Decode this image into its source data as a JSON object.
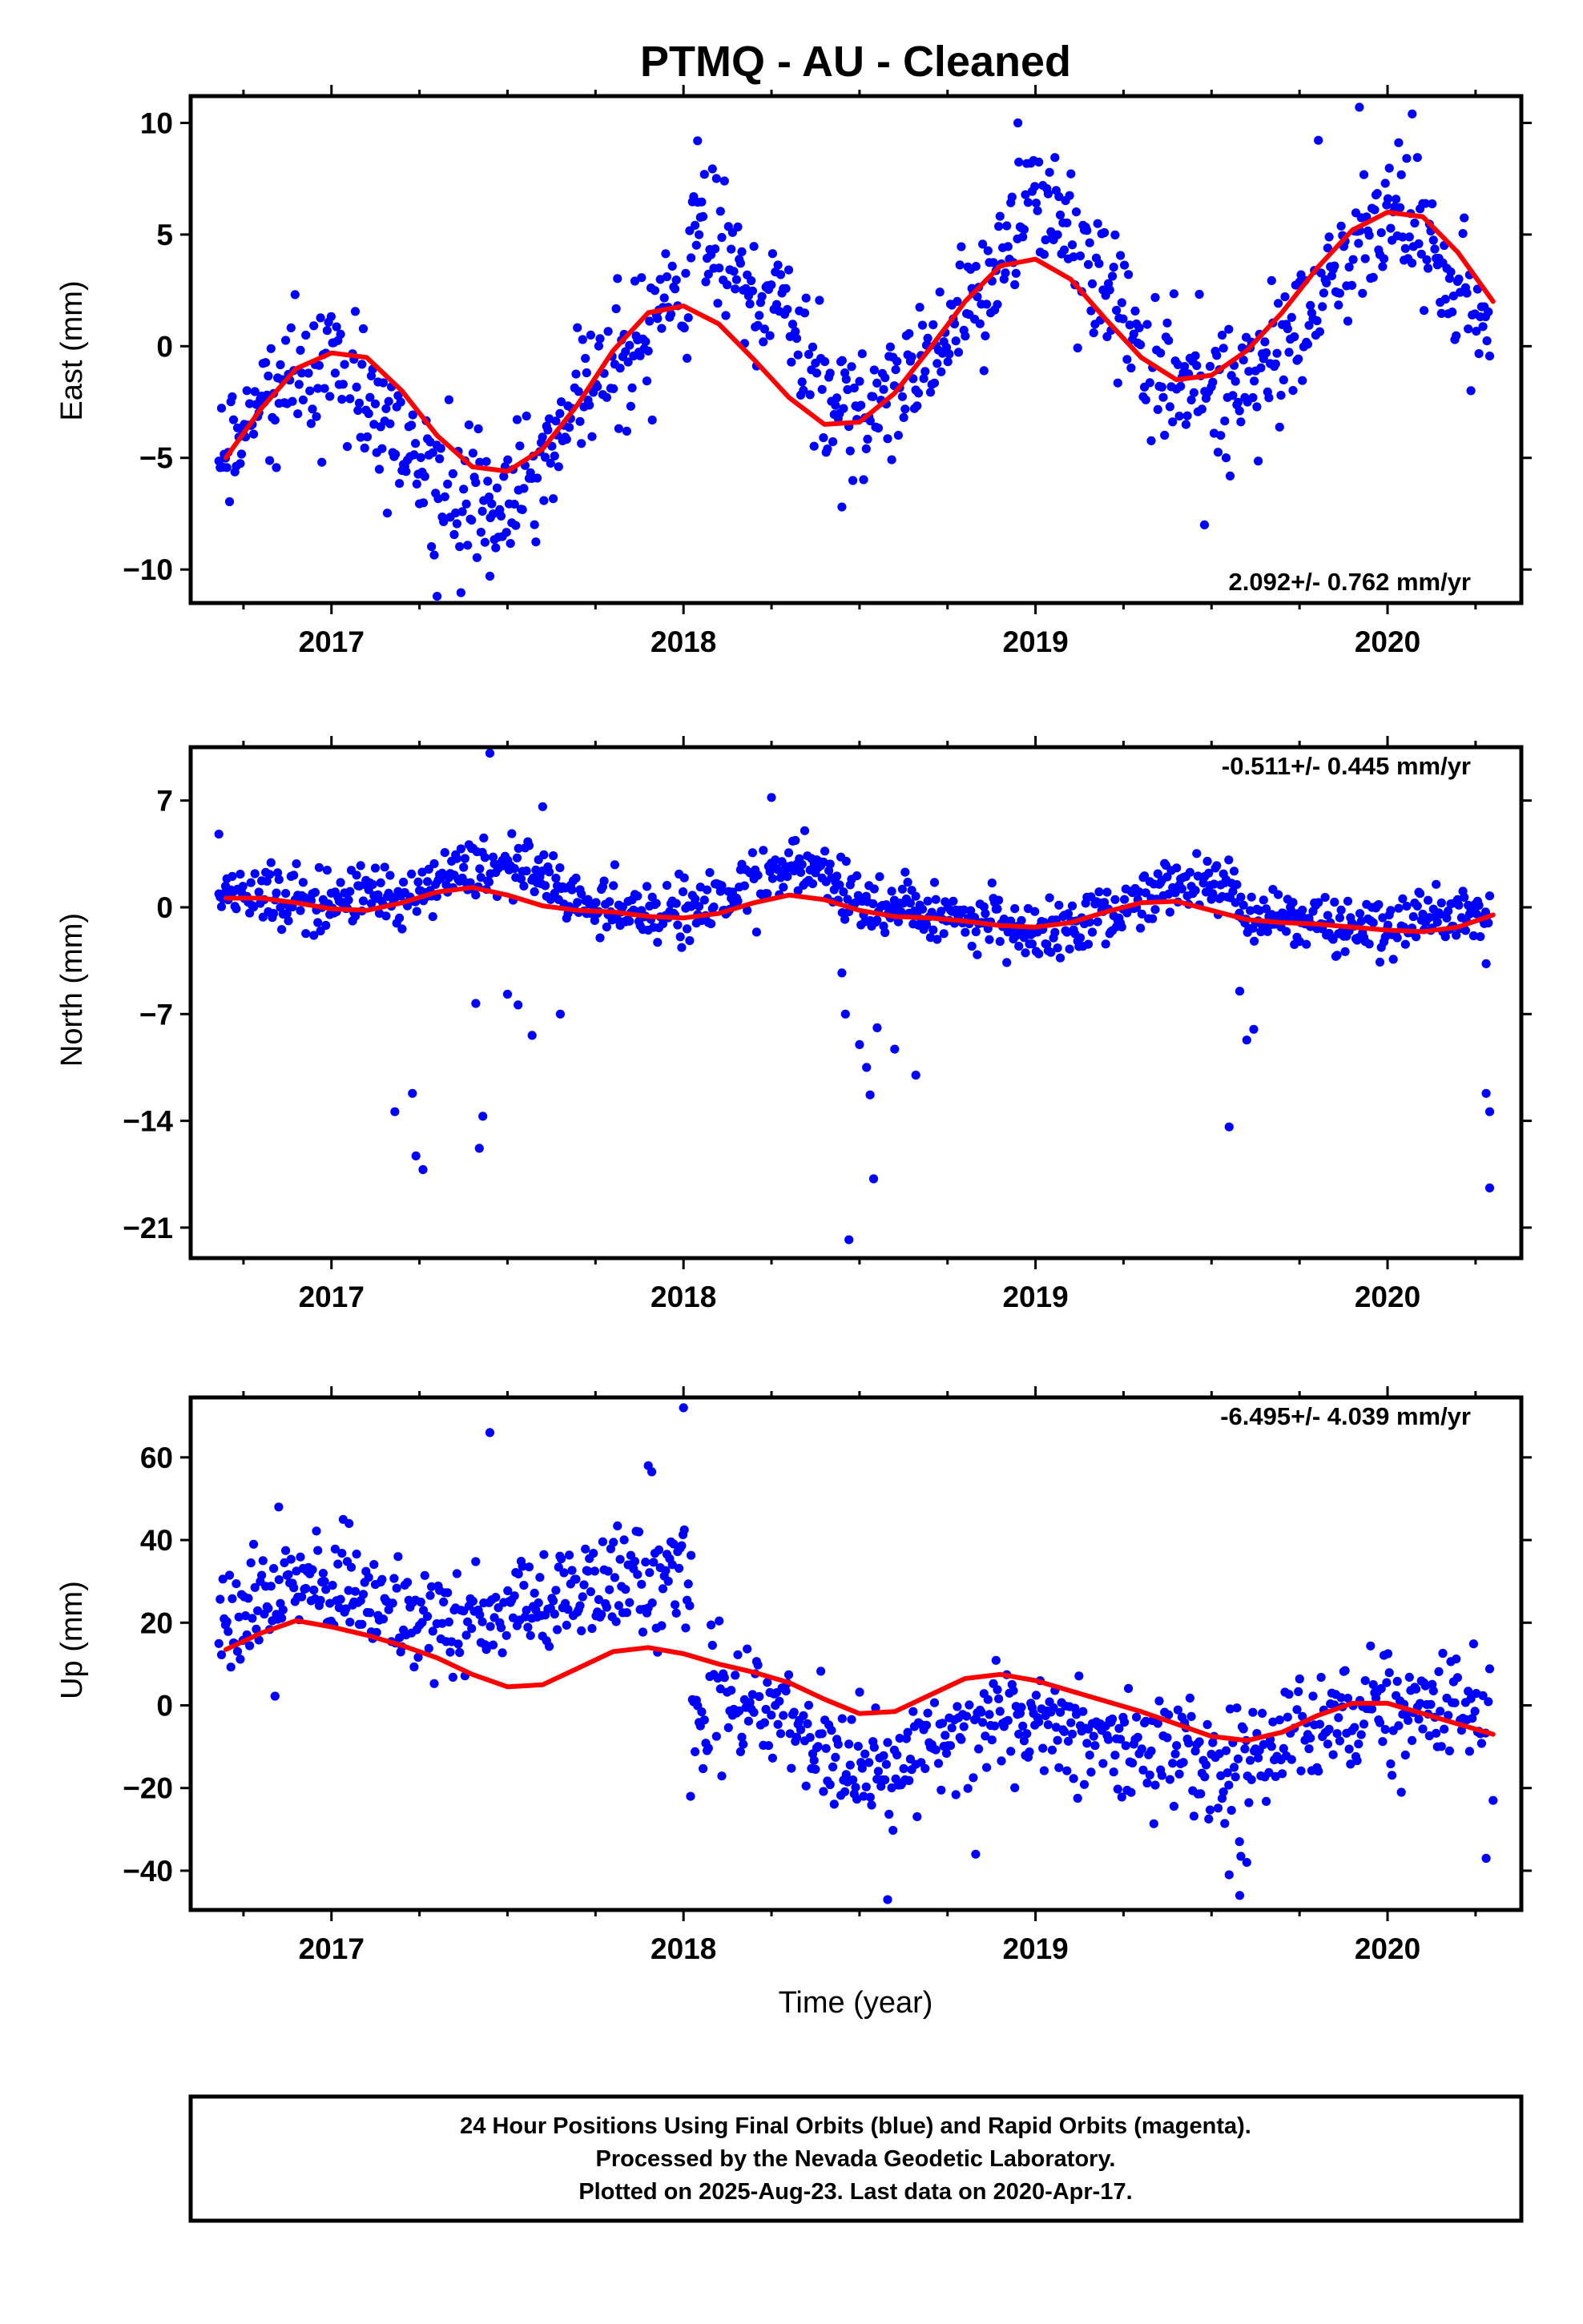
{
  "chart_data": {
    "type": "scatter",
    "title": "PTMQ  - AU - Cleaned",
    "xlabel": "Time (year)",
    "xlim": [
      2016.6,
      2020.38
    ],
    "x_ticks": [
      2017,
      2018,
      2019,
      2020
    ],
    "x_tick_labels": [
      "2017",
      "2018",
      "2019",
      "2020"
    ],
    "point_color": "#0000ff",
    "fit_color": "#ff0000",
    "panels": [
      {
        "name": "east",
        "ylabel": "East (mm)",
        "ylim": [
          -11.5,
          11.2
        ],
        "y_ticks": [
          10,
          5,
          0,
          -5,
          -10
        ],
        "y_tick_labels": [
          "10",
          "5",
          "0",
          "−5",
          "−10"
        ],
        "rate_label": "2.092+/- 0.762 mm/yr",
        "rate_position": "bottom-right",
        "fit": {
          "x": [
            2016.7,
            2016.8,
            2016.9,
            2017.0,
            2017.1,
            2017.2,
            2017.3,
            2017.4,
            2017.5,
            2017.6,
            2017.7,
            2017.8,
            2017.9,
            2018.0,
            2018.1,
            2018.2,
            2018.3,
            2018.4,
            2018.5,
            2018.6,
            2018.7,
            2018.8,
            2018.9,
            2019.0,
            2019.1,
            2019.2,
            2019.3,
            2019.4,
            2019.5,
            2019.6,
            2019.7,
            2019.8,
            2019.9,
            2020.0,
            2020.1,
            2020.2,
            2020.3
          ],
          "y": [
            -5.0,
            -2.8,
            -1.0,
            -0.3,
            -0.5,
            -2.0,
            -4.0,
            -5.4,
            -5.6,
            -4.6,
            -2.6,
            -0.2,
            1.5,
            1.8,
            1.0,
            -0.6,
            -2.3,
            -3.5,
            -3.4,
            -2.1,
            -0.1,
            2.0,
            3.6,
            3.9,
            3.0,
            1.2,
            -0.5,
            -1.5,
            -1.3,
            -0.2,
            1.5,
            3.5,
            5.2,
            6.0,
            5.8,
            4.2,
            2.0
          ]
        },
        "scatter": {
          "mean": [
            [
              2016.7,
              -5.0
            ],
            [
              2016.8,
              -2.8
            ],
            [
              2016.9,
              -1.2
            ],
            [
              2017.0,
              -1.0
            ],
            [
              2017.1,
              -2.0
            ],
            [
              2017.2,
              -4.5
            ],
            [
              2017.3,
              -6.2
            ],
            [
              2017.4,
              -7.2
            ],
            [
              2017.5,
              -7.0
            ],
            [
              2017.6,
              -5.0
            ],
            [
              2017.7,
              -2.8
            ],
            [
              2017.8,
              -0.8
            ],
            [
              2017.9,
              1.0
            ],
            [
              2018.0,
              2.0
            ],
            [
              2018.05,
              5.5
            ],
            [
              2018.1,
              4.8
            ],
            [
              2018.2,
              2.5
            ],
            [
              2018.3,
              1.0
            ],
            [
              2018.4,
              -1.5
            ],
            [
              2018.5,
              -3.0
            ],
            [
              2018.6,
              -2.0
            ],
            [
              2018.7,
              -0.5
            ],
            [
              2018.8,
              1.5
            ],
            [
              2018.9,
              4.0
            ],
            [
              2019.0,
              6.5
            ],
            [
              2019.1,
              5.5
            ],
            [
              2019.2,
              2.5
            ],
            [
              2019.3,
              0.0
            ],
            [
              2019.4,
              -1.5
            ],
            [
              2019.5,
              -2.0
            ],
            [
              2019.6,
              -1.0
            ],
            [
              2019.7,
              0.0
            ],
            [
              2019.8,
              2.0
            ],
            [
              2019.9,
              4.5
            ],
            [
              2020.0,
              6.0
            ],
            [
              2020.1,
              5.0
            ],
            [
              2020.2,
              2.5
            ],
            [
              2020.3,
              0.5
            ]
          ],
          "spread": 1.5,
          "outliers": [
            [
              2017.3,
              -11.2
            ],
            [
              2017.45,
              -10.3
            ],
            [
              2018.04,
              9.2
            ],
            [
              2018.95,
              10.0
            ],
            [
              2019.48,
              -8.0
            ],
            [
              2019.92,
              10.7
            ],
            [
              2020.07,
              10.4
            ],
            [
              2018.45,
              -7.2
            ]
          ]
        }
      },
      {
        "name": "north",
        "ylabel": "North (mm)",
        "ylim": [
          -23.0,
          10.5
        ],
        "y_ticks": [
          7,
          0,
          -7,
          -14,
          -21
        ],
        "y_tick_labels": [
          "7",
          "0",
          "−7",
          "−14",
          "−21"
        ],
        "rate_label": "-0.511+/- 0.445 mm/yr",
        "rate_position": "top-right",
        "fit": {
          "x": [
            2016.7,
            2016.8,
            2016.9,
            2017.0,
            2017.1,
            2017.2,
            2017.3,
            2017.4,
            2017.5,
            2017.6,
            2017.7,
            2017.8,
            2017.9,
            2018.0,
            2018.1,
            2018.2,
            2018.3,
            2018.4,
            2018.5,
            2018.6,
            2018.7,
            2018.8,
            2018.9,
            2019.0,
            2019.1,
            2019.2,
            2019.3,
            2019.4,
            2019.5,
            2019.6,
            2019.7,
            2019.8,
            2019.9,
            2020.0,
            2020.1,
            2020.2,
            2020.3
          ],
          "y": [
            0.6,
            0.6,
            0.3,
            -0.1,
            -0.2,
            0.3,
            1.0,
            1.3,
            0.8,
            0.1,
            -0.2,
            -0.3,
            -0.6,
            -0.7,
            -0.4,
            0.3,
            0.8,
            0.5,
            -0.2,
            -0.6,
            -0.7,
            -0.9,
            -1.2,
            -1.3,
            -1.0,
            -0.3,
            0.3,
            0.4,
            -0.2,
            -0.8,
            -1.0,
            -1.1,
            -1.3,
            -1.5,
            -1.6,
            -1.3,
            -0.5
          ]
        },
        "scatter": {
          "mean": [
            [
              2016.7,
              1.2
            ],
            [
              2016.8,
              0.8
            ],
            [
              2016.9,
              0.5
            ],
            [
              2017.0,
              0.5
            ],
            [
              2017.1,
              1.0
            ],
            [
              2017.2,
              0.5
            ],
            [
              2017.3,
              2.0
            ],
            [
              2017.4,
              3.0
            ],
            [
              2017.5,
              3.0
            ],
            [
              2017.6,
              2.0
            ],
            [
              2017.7,
              0.5
            ],
            [
              2017.8,
              0.0
            ],
            [
              2017.9,
              -0.5
            ],
            [
              2018.0,
              -0.5
            ],
            [
              2018.1,
              0.5
            ],
            [
              2018.2,
              1.5
            ],
            [
              2018.3,
              2.5
            ],
            [
              2018.4,
              2.5
            ],
            [
              2018.5,
              0.5
            ],
            [
              2018.6,
              0.0
            ],
            [
              2018.7,
              -0.5
            ],
            [
              2018.8,
              -0.5
            ],
            [
              2018.9,
              -1.0
            ],
            [
              2019.0,
              -1.5
            ],
            [
              2019.1,
              -1.0
            ],
            [
              2019.2,
              -0.5
            ],
            [
              2019.3,
              0.5
            ],
            [
              2019.4,
              1.5
            ],
            [
              2019.5,
              1.5
            ],
            [
              2019.6,
              -0.5
            ],
            [
              2019.7,
              -0.8
            ],
            [
              2019.8,
              -1.0
            ],
            [
              2019.9,
              -1.5
            ],
            [
              2020.0,
              -1.5
            ],
            [
              2020.1,
              -1.0
            ],
            [
              2020.2,
              -0.5
            ],
            [
              2020.3,
              -1.0
            ]
          ],
          "spread": 1.0,
          "outliers": [
            [
              2016.68,
              4.8
            ],
            [
              2017.18,
              -13.4
            ],
            [
              2017.23,
              -12.2
            ],
            [
              2017.24,
              -16.3
            ],
            [
              2017.26,
              -17.2
            ],
            [
              2017.41,
              -6.3
            ],
            [
              2017.43,
              -13.7
            ],
            [
              2017.42,
              -15.8
            ],
            [
              2017.45,
              10.1
            ],
            [
              2017.5,
              -5.7
            ],
            [
              2017.53,
              -6.4
            ],
            [
              2017.57,
              -8.4
            ],
            [
              2017.6,
              6.6
            ],
            [
              2017.65,
              -7.0
            ],
            [
              2018.25,
              7.2
            ],
            [
              2018.45,
              -4.3
            ],
            [
              2018.46,
              -7.0
            ],
            [
              2018.47,
              -21.8
            ],
            [
              2018.5,
              -9.0
            ],
            [
              2018.52,
              -10.5
            ],
            [
              2018.53,
              -12.3
            ],
            [
              2018.54,
              -17.8
            ],
            [
              2018.55,
              -7.9
            ],
            [
              2018.6,
              -9.3
            ],
            [
              2018.66,
              -11.0
            ],
            [
              2019.55,
              -14.4
            ],
            [
              2019.58,
              -5.5
            ],
            [
              2019.6,
              -8.7
            ],
            [
              2019.62,
              -8.0
            ],
            [
              2020.28,
              -3.7
            ],
            [
              2020.28,
              -12.2
            ],
            [
              2020.29,
              -13.4
            ],
            [
              2020.29,
              -18.4
            ]
          ]
        }
      },
      {
        "name": "up",
        "ylabel": "Up (mm)",
        "ylim": [
          -49.5,
          74.5
        ],
        "y_ticks": [
          60,
          40,
          20,
          0,
          -20,
          -40
        ],
        "y_tick_labels": [
          "60",
          "40",
          "20",
          "0",
          "−20",
          "−40"
        ],
        "rate_label": "-6.495+/- 4.039 mm/yr",
        "rate_position": "top-right",
        "fit": {
          "x": [
            2016.7,
            2016.8,
            2016.9,
            2017.0,
            2017.1,
            2017.2,
            2017.3,
            2017.4,
            2017.5,
            2017.6,
            2017.7,
            2017.8,
            2017.9,
            2018.0,
            2018.1,
            2018.2,
            2018.3,
            2018.4,
            2018.5,
            2018.6,
            2018.7,
            2018.8,
            2018.9,
            2019.0,
            2019.1,
            2019.2,
            2019.3,
            2019.4,
            2019.5,
            2019.6,
            2019.7,
            2019.8,
            2019.9,
            2020.0,
            2020.1,
            2020.2,
            2020.3
          ],
          "y": [
            13.5,
            17.5,
            20.5,
            19.0,
            17.0,
            14.5,
            11.5,
            7.5,
            4.5,
            5.0,
            9.0,
            13.0,
            14.0,
            12.5,
            10.0,
            8.0,
            5.5,
            1.5,
            -2.0,
            -1.5,
            2.5,
            6.5,
            7.5,
            6.0,
            3.5,
            1.0,
            -1.5,
            -4.5,
            -7.5,
            -8.5,
            -6.5,
            -2.5,
            0.5,
            0.5,
            -2.0,
            -4.5,
            -7.0
          ]
        },
        "scatter": {
          "mean": [
            [
              2016.7,
              22.0
            ],
            [
              2016.8,
              24.0
            ],
            [
              2016.9,
              27.0
            ],
            [
              2017.0,
              29.0
            ],
            [
              2017.1,
              28.0
            ],
            [
              2017.2,
              24.0
            ],
            [
              2017.3,
              20.0
            ],
            [
              2017.4,
              20.0
            ],
            [
              2017.5,
              24.0
            ],
            [
              2017.6,
              26.0
            ],
            [
              2017.7,
              28.0
            ],
            [
              2017.8,
              30.0
            ],
            [
              2017.9,
              31.0
            ],
            [
              2018.0,
              32.0
            ],
            [
              2018.05,
              -3.0
            ],
            [
              2018.1,
              1.0
            ],
            [
              2018.2,
              2.0
            ],
            [
              2018.3,
              -3.0
            ],
            [
              2018.4,
              -14.0
            ],
            [
              2018.5,
              -18.0
            ],
            [
              2018.6,
              -15.0
            ],
            [
              2018.7,
              -11.0
            ],
            [
              2018.8,
              -6.0
            ],
            [
              2018.9,
              -3.0
            ],
            [
              2019.0,
              -4.0
            ],
            [
              2019.1,
              -6.0
            ],
            [
              2019.2,
              -8.0
            ],
            [
              2019.3,
              -10.0
            ],
            [
              2019.4,
              -12.0
            ],
            [
              2019.5,
              -15.0
            ],
            [
              2019.6,
              -14.0
            ],
            [
              2019.7,
              -10.0
            ],
            [
              2019.8,
              -6.0
            ],
            [
              2019.9,
              -3.0
            ],
            [
              2020.0,
              0.0
            ],
            [
              2020.1,
              2.0
            ],
            [
              2020.2,
              0.0
            ],
            [
              2020.3,
              -3.0
            ]
          ],
          "spread": 6.5,
          "outliers": [
            [
              2017.45,
              66.0
            ],
            [
              2017.9,
              58.0
            ],
            [
              2017.91,
              56.5
            ],
            [
              2018.0,
              72.0
            ],
            [
              2018.02,
              -22.0
            ],
            [
              2018.58,
              -47.0
            ],
            [
              2018.83,
              -36.0
            ],
            [
              2019.55,
              -41.0
            ],
            [
              2019.58,
              -46.0
            ],
            [
              2019.6,
              -38.0
            ],
            [
              2020.28,
              -37.0
            ],
            [
              2020.3,
              -23.0
            ],
            [
              2016.85,
              48.0
            ],
            [
              2017.05,
              44.0
            ]
          ]
        }
      }
    ]
  },
  "footer": {
    "line1": "24 Hour Positions Using Final Orbits (blue) and Rapid Orbits (magenta).",
    "line2": "Processed by the Nevada Geodetic Laboratory.",
    "line3": "Plotted on 2025-Aug-23. Last data on 2020-Apr-17."
  }
}
